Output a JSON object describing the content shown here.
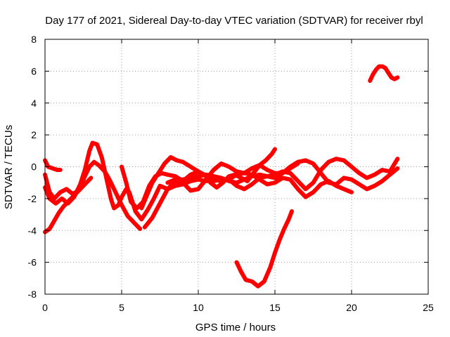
{
  "chart_data": {
    "type": "line",
    "title": "Day 177 of 2021, Sidereal Day-to-day VTEC variation (SDTVAR) for receiver rbyl",
    "xlabel": "GPS time / hours",
    "ylabel": "SDTVAR / TECUs",
    "xlim": [
      0,
      25
    ],
    "ylim": [
      -8,
      8
    ],
    "xticks": [
      0,
      5,
      10,
      15,
      20,
      25
    ],
    "yticks": [
      -8,
      -6,
      -4,
      -2,
      0,
      2,
      4,
      6,
      8
    ],
    "grid": true,
    "legend": "none",
    "color": "#ff0000",
    "series": [
      {
        "name": "trace-1",
        "x": [
          0.0,
          0.2,
          0.5,
          0.8,
          1.0
        ],
        "y": [
          0.4,
          0.0,
          -0.1,
          -0.2,
          -0.2
        ]
      },
      {
        "name": "trace-2",
        "x": [
          0.0,
          0.3,
          0.6,
          1.0,
          1.4,
          1.8,
          2.2,
          2.6,
          2.9,
          3.2,
          3.5,
          3.9,
          4.2,
          4.6,
          5.0,
          5.4,
          5.8,
          6.2
        ],
        "y": [
          -0.5,
          -1.6,
          -2.0,
          -1.6,
          -1.4,
          -1.7,
          -1.5,
          -0.6,
          0.0,
          0.3,
          0.1,
          -0.3,
          -0.8,
          -1.6,
          -2.4,
          -3.1,
          -3.5,
          -3.9
        ]
      },
      {
        "name": "trace-3",
        "x": [
          0.0,
          0.3,
          0.7,
          1.1,
          1.5,
          1.9,
          2.3,
          2.6,
          2.9,
          3.1,
          3.4,
          3.7,
          4.0,
          4.3,
          4.5,
          4.8,
          5.0,
          5.3
        ],
        "y": [
          -1.3,
          -2.0,
          -2.3,
          -2.0,
          -2.3,
          -1.9,
          -1.1,
          -0.2,
          1.0,
          1.5,
          1.4,
          0.6,
          -0.7,
          -2.0,
          -2.6,
          -2.4,
          -1.9,
          -1.4
        ]
      },
      {
        "name": "trace-4",
        "x": [
          0.0,
          0.3,
          0.6,
          0.9,
          1.2,
          1.5,
          1.8,
          2.1,
          2.4,
          2.7,
          3.0
        ],
        "y": [
          -4.1,
          -3.9,
          -3.4,
          -2.9,
          -2.5,
          -2.2,
          -1.9,
          -1.6,
          -1.3,
          -1.0,
          -0.7
        ]
      },
      {
        "name": "trace-5",
        "x": [
          5.0,
          5.3,
          5.6,
          6.0,
          6.4,
          6.8,
          7.2,
          7.6,
          8.0,
          8.5,
          9.0,
          9.5,
          10.0,
          10.4,
          10.8,
          11.2,
          11.6,
          12.0,
          12.4,
          12.8,
          13.2,
          13.6,
          14.0,
          14.4,
          14.8,
          15.0
        ],
        "y": [
          0.0,
          -1.0,
          -2.2,
          -2.6,
          -2.2,
          -1.2,
          -0.6,
          -0.4,
          -0.5,
          -0.6,
          -0.9,
          -0.5,
          -0.3,
          -0.5,
          -1.0,
          -1.3,
          -1.0,
          -0.6,
          -0.5,
          -0.7,
          -0.9,
          -0.4,
          0.1,
          0.4,
          0.8,
          1.1
        ]
      },
      {
        "name": "trace-6",
        "x": [
          5.5,
          5.9,
          6.3,
          6.7,
          7.1,
          7.5,
          8.0,
          8.5,
          9.0,
          9.5,
          10.0,
          10.5,
          11.0,
          11.5,
          12.0,
          12.5,
          13.0,
          13.5,
          14.0,
          14.5,
          15.0,
          15.5,
          16.0,
          16.5
        ],
        "y": [
          -1.6,
          -2.8,
          -3.3,
          -2.7,
          -2.0,
          -1.2,
          -1.4,
          -1.2,
          -1.1,
          -0.9,
          -0.8,
          -0.9,
          -0.9,
          -0.8,
          -0.8,
          -1.2,
          -1.4,
          -1.1,
          -0.7,
          -0.6,
          -0.7,
          -0.4,
          -0.1,
          0.2
        ]
      },
      {
        "name": "trace-7",
        "x": [
          6.3,
          6.6,
          7.0,
          7.4,
          7.8,
          8.2,
          8.6,
          9.0,
          9.5,
          10.0,
          10.5,
          11.0,
          11.5,
          12.0,
          12.5,
          13.0,
          13.5,
          14.0,
          14.5,
          15.0,
          15.5,
          16.0,
          16.5,
          17.0,
          17.5,
          18.0,
          18.5,
          19.0,
          19.5,
          20.0
        ],
        "y": [
          -2.6,
          -1.9,
          -1.0,
          -0.4,
          0.2,
          0.6,
          0.4,
          0.3,
          0.0,
          -0.3,
          -0.6,
          -0.8,
          -0.9,
          -0.8,
          -0.5,
          -0.4,
          -0.5,
          -0.8,
          -1.1,
          -1.0,
          -0.7,
          -0.8,
          -1.4,
          -1.9,
          -1.6,
          -1.1,
          -0.9,
          -1.2,
          -1.4,
          -1.6
        ]
      },
      {
        "name": "trace-8",
        "x": [
          6.5,
          7.0,
          7.5,
          8.0,
          8.5,
          9.0,
          9.5,
          10.0,
          10.5,
          11.0,
          11.5,
          12.0,
          12.5,
          13.0,
          13.5,
          14.0,
          14.5,
          15.0,
          15.5,
          16.0,
          16.5,
          17.0,
          17.5,
          18.0,
          18.5,
          19.0,
          19.5,
          20.0,
          20.5,
          21.0,
          21.5,
          22.0,
          22.5,
          23.0
        ],
        "y": [
          -3.8,
          -3.2,
          -2.3,
          -1.4,
          -0.9,
          -1.0,
          -1.5,
          -1.4,
          -0.8,
          -0.2,
          0.2,
          0.0,
          -0.3,
          -0.4,
          -0.1,
          0.1,
          -0.2,
          -0.4,
          -0.4,
          0.0,
          0.3,
          0.4,
          0.2,
          -0.4,
          -1.0,
          -1.1,
          -0.7,
          -0.8,
          -1.1,
          -1.4,
          -1.2,
          -0.9,
          -0.5,
          -0.1
        ]
      },
      {
        "name": "trace-9",
        "x": [
          8.0,
          8.5,
          9.0,
          9.5,
          10.0,
          10.5,
          11.0,
          11.5,
          12.0,
          12.5,
          13.0,
          13.5,
          14.0,
          14.5,
          15.0,
          15.5,
          16.0,
          16.5,
          17.0,
          17.5,
          18.0,
          18.5,
          19.0,
          19.5,
          20.0,
          20.5,
          21.0,
          21.5,
          22.0,
          22.5,
          23.0
        ],
        "y": [
          -1.0,
          -0.8,
          -0.8,
          -0.7,
          -0.6,
          -0.5,
          -0.6,
          -0.7,
          -0.9,
          -1.0,
          -0.8,
          -0.6,
          -0.5,
          -0.6,
          -0.5,
          -0.3,
          -0.4,
          -0.9,
          -1.4,
          -1.0,
          -0.2,
          0.3,
          0.5,
          0.4,
          0.0,
          -0.4,
          -0.7,
          -0.5,
          -0.2,
          -0.3,
          0.5
        ]
      },
      {
        "name": "trace-10",
        "x": [
          12.5,
          12.8,
          13.1,
          13.5,
          13.9,
          14.3,
          14.7,
          15.0,
          15.3,
          15.6,
          15.9,
          16.1
        ],
        "y": [
          -6.0,
          -6.6,
          -7.1,
          -7.2,
          -7.5,
          -7.2,
          -6.3,
          -5.4,
          -4.6,
          -3.9,
          -3.3,
          -2.8
        ]
      },
      {
        "name": "trace-11",
        "x": [
          21.2,
          21.4,
          21.6,
          21.8,
          22.0,
          22.2,
          22.4,
          22.6,
          22.8,
          23.0
        ],
        "y": [
          5.4,
          5.8,
          6.1,
          6.3,
          6.3,
          6.2,
          5.9,
          5.6,
          5.5,
          5.6
        ]
      }
    ]
  }
}
